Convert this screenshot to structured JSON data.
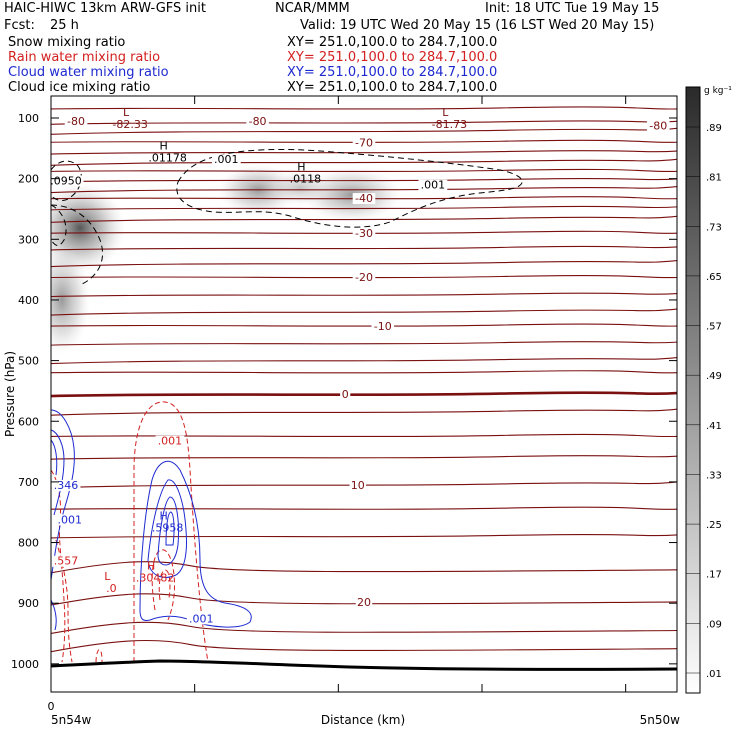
{
  "header": {
    "model": "HAIC-HIWC 13km ARW-GFS init",
    "center": "NCAR/MMM",
    "init": "Init: 18 UTC Tue 19 May 15",
    "fcst_label": "Fcst:",
    "fcst_value": "25 h",
    "valid": "Valid: 19 UTC Wed 20 May 15 (16 LST Wed 20 May 15)",
    "fields": [
      {
        "name": "Snow mixing ratio",
        "xy": "XY= 251.0,100.0 to 284.7,100.0",
        "color": "#000000"
      },
      {
        "name": "Rain water mixing ratio",
        "xy": "XY= 251.0,100.0 to 284.7,100.0",
        "color": "#d42020"
      },
      {
        "name": "Cloud water mixing ratio",
        "xy": "XY= 251.0,100.0 to 284.7,100.0",
        "color": "#1e2ad0"
      },
      {
        "name": "Cloud ice mixing ratio",
        "xy": "XY= 251.0,100.0 to 284.7,100.0",
        "color": "#000000"
      }
    ]
  },
  "chart_data": {
    "type": "heatmap",
    "ylabel": "Pressure (hPa)",
    "xlabel": "Distance (km)",
    "x_start_label": "5n54w",
    "x_end_label": "5n50w",
    "x_zero_label": "0",
    "y_ticks": [
      100,
      200,
      300,
      400,
      500,
      600,
      700,
      800,
      900,
      1000
    ],
    "ylim": [
      1030,
      60
    ],
    "colorbar": {
      "unit": "g kg⁻¹",
      "levels": [
        ".01",
        ".09",
        ".17",
        ".25",
        ".33",
        ".41",
        ".49",
        ".57",
        ".65",
        ".73",
        ".81",
        ".89"
      ]
    },
    "temperature_contours": {
      "color": "#7a1010",
      "labels": [
        {
          "text": "-80",
          "p": 105,
          "x": 0.04
        },
        {
          "text": "-80",
          "p": 105,
          "x": 0.33
        },
        {
          "text": "-80",
          "p": 112,
          "x": 0.97
        },
        {
          "text": "-70",
          "p": 140,
          "x": 0.5
        },
        {
          "text": "-40",
          "p": 232,
          "x": 0.5
        },
        {
          "text": "-30",
          "p": 290,
          "x": 0.5
        },
        {
          "text": "-20",
          "p": 362,
          "x": 0.5
        },
        {
          "text": "-10",
          "p": 443,
          "x": 0.53
        },
        {
          "text": "0",
          "p": 555,
          "x": 0.47
        },
        {
          "text": "10",
          "p": 705,
          "x": 0.49
        },
        {
          "text": "20",
          "p": 898,
          "x": 0.5
        }
      ],
      "levels_p": [
        85,
        108,
        122,
        140,
        157,
        173,
        188,
        203,
        218,
        233,
        249,
        267,
        290,
        315,
        340,
        363,
        392,
        420,
        443,
        472,
        500,
        520,
        556,
        585,
        625,
        660,
        705,
        745,
        790,
        845,
        898,
        945,
        975
      ]
    },
    "extrema": [
      {
        "kind": "L",
        "value": "-82.33",
        "p": 110,
        "x": 0.12,
        "color": "#7a1010"
      },
      {
        "kind": "L",
        "value": "-81.73",
        "p": 110,
        "x": 0.63,
        "color": "#7a1010"
      },
      {
        "kind": "H",
        "value": ".01178",
        "p": 165,
        "x": 0.18,
        "color": "#000000"
      },
      {
        "kind": "H",
        "value": ".0118",
        "p": 200,
        "x": 0.4,
        "color": "#000000"
      },
      {
        "kind": "H",
        "value": ".5958",
        "p": 775,
        "x": 0.18,
        "color": "#1e2ad0"
      },
      {
        "kind": "H",
        "value": ".30482",
        "p": 858,
        "x": 0.16,
        "color": "#d42020"
      },
      {
        "kind": "L",
        "value": ".0",
        "p": 875,
        "x": 0.09,
        "color": "#d42020"
      }
    ],
    "contour_labels": [
      {
        "text": ".001",
        "p": 168,
        "x": 0.28,
        "color": "#000000"
      },
      {
        "text": ".001",
        "p": 210,
        "x": 0.61,
        "color": "#000000"
      },
      {
        "text": ".0950",
        "p": 203,
        "x": 0.0,
        "color": "#000000"
      },
      {
        "text": ".001",
        "p": 632,
        "x": 0.19,
        "color": "#d42020"
      },
      {
        "text": ".346",
        "p": 705,
        "x": 0.0,
        "color": "#1e2ad0"
      },
      {
        "text": ".001",
        "p": 762,
        "x": 0.03,
        "color": "#1e2ad0"
      },
      {
        "text": ".557",
        "p": 830,
        "x": 0.01,
        "color": "#d42020"
      },
      {
        "text": ".001",
        "p": 925,
        "x": 0.24,
        "color": "#1e2ad0"
      }
    ]
  }
}
